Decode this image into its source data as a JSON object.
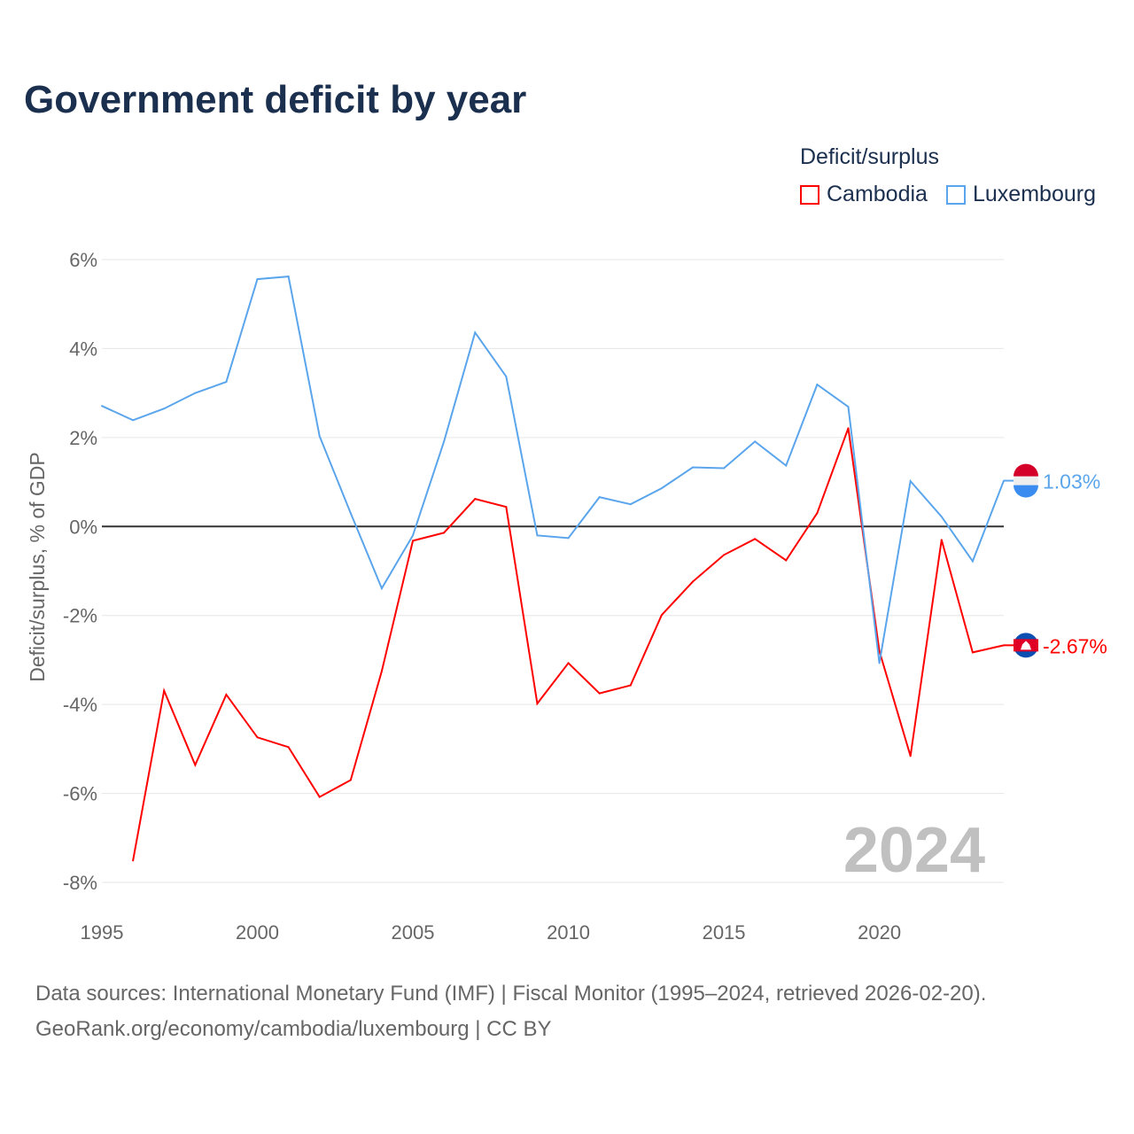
{
  "chart_data": {
    "type": "line",
    "title": "Government deficit by year",
    "ylabel": "Deficit/surplus, % of GDP",
    "xlabel": "",
    "legend_title": "Deficit/surplus",
    "legend_position": "top-right",
    "xlim": [
      1995,
      2024
    ],
    "ylim": [
      -8,
      6
    ],
    "x_ticks": [
      "1995",
      "2000",
      "2005",
      "2010",
      "2015",
      "2020"
    ],
    "y_ticks": [
      "6%",
      "4%",
      "2%",
      "0%",
      "-2%",
      "-4%",
      "-6%",
      "-8%"
    ],
    "year_watermark": "2024",
    "series": [
      {
        "name": "Cambodia",
        "color": "#ff0000",
        "end_label": "-2.67%",
        "x": [
          1996,
          1997,
          1998,
          1999,
          2000,
          2001,
          2002,
          2003,
          2004,
          2005,
          2006,
          2007,
          2008,
          2009,
          2010,
          2011,
          2012,
          2013,
          2014,
          2015,
          2016,
          2017,
          2018,
          2019,
          2020,
          2021,
          2022,
          2023,
          2024
        ],
        "values": [
          -7.51,
          -3.69,
          -5.36,
          -3.78,
          -4.74,
          -4.96,
          -6.08,
          -5.7,
          -3.25,
          -0.32,
          -0.14,
          0.62,
          0.44,
          -3.98,
          -3.07,
          -3.75,
          -3.57,
          -1.99,
          -1.24,
          -0.64,
          -0.28,
          -0.76,
          0.3,
          2.21,
          -2.8,
          -5.16,
          -0.3,
          -2.83,
          -2.67
        ]
      },
      {
        "name": "Luxembourg",
        "color": "#5aa5ec",
        "end_label": "1.03%",
        "x": [
          1995,
          1996,
          1997,
          1998,
          1999,
          2000,
          2001,
          2002,
          2003,
          2004,
          2005,
          2006,
          2007,
          2008,
          2009,
          2010,
          2011,
          2012,
          2013,
          2014,
          2015,
          2016,
          2017,
          2018,
          2019,
          2020,
          2021,
          2022,
          2023,
          2024
        ],
        "values": [
          2.71,
          2.39,
          2.65,
          3.0,
          3.25,
          5.56,
          5.62,
          2.03,
          0.3,
          -1.39,
          -0.2,
          1.91,
          4.36,
          3.37,
          -0.2,
          -0.26,
          0.66,
          0.5,
          0.86,
          1.33,
          1.31,
          1.91,
          1.37,
          3.19,
          2.69,
          -3.07,
          1.02,
          0.22,
          -0.78,
          1.03
        ]
      }
    ]
  },
  "source_line1": "Data sources: International Monetary Fund (IMF) | Fiscal Monitor (1995–2024, retrieved 2026-02-20).",
  "source_line2": "GeoRank.org/economy/cambodia/luxembourg | CC BY"
}
